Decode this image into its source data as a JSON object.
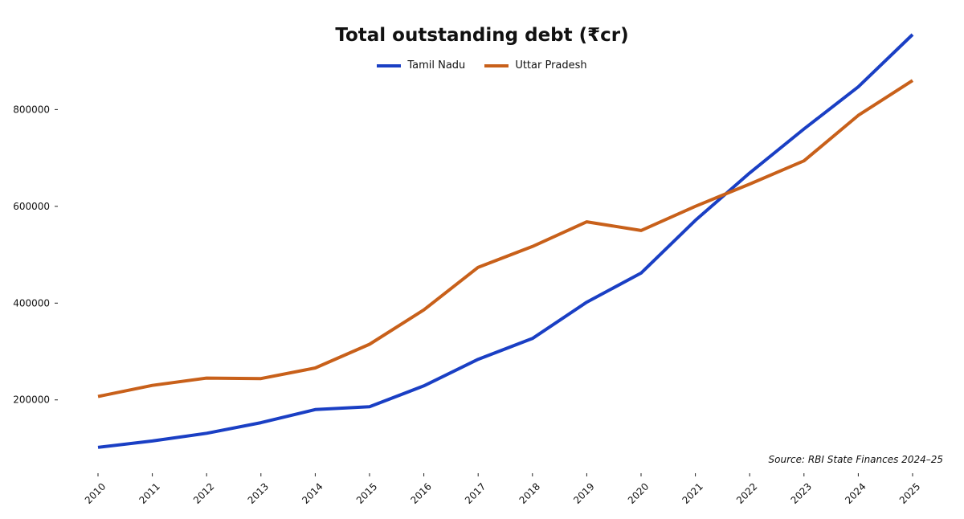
{
  "chart_data": {
    "type": "line",
    "title": "Total outstanding debt (₹cr)",
    "xlabel": "",
    "ylabel": "",
    "x": [
      "2010",
      "2011",
      "2012",
      "2013",
      "2014",
      "2015",
      "2016",
      "2017",
      "2018",
      "2019",
      "2020",
      "2021",
      "2022",
      "2023",
      "2024",
      "2025"
    ],
    "ylim": [
      90000,
      960000
    ],
    "yticks": [
      200000,
      400000,
      600000,
      800000
    ],
    "grid": false,
    "legend_position": "top-center",
    "series": [
      {
        "name": "Tamil Nadu",
        "color": "#1a3fc4",
        "values": [
          102000,
          115000,
          131000,
          153000,
          180000,
          186000,
          229000,
          284000,
          327000,
          402000,
          462000,
          571000,
          669000,
          760000,
          847000,
          955000
        ]
      },
      {
        "name": "Uttar Pradesh",
        "color": "#c8601a",
        "values": [
          207000,
          230000,
          245000,
          244000,
          266000,
          315000,
          386000,
          474000,
          517000,
          568000,
          550000,
          600000,
          646000,
          694000,
          788000,
          860000
        ]
      }
    ],
    "source_note": "Source: RBI State Finances 2024–25"
  }
}
